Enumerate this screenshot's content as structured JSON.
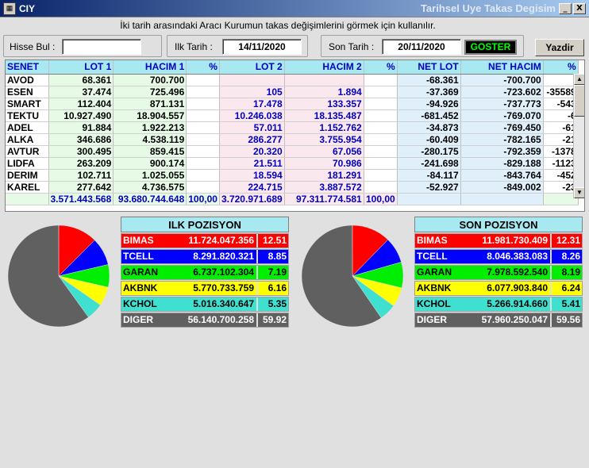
{
  "window": {
    "title_left": "CIY",
    "title_right": "Tarihsel Uye Takas Degisim",
    "min": "_",
    "close": "X",
    "icon": "app-icon"
  },
  "hint": "İki tarih arasındaki  Aracı Kurumun takas değişimlerini görmek için kullanılır.",
  "filters": {
    "hisse_label": "Hisse Bul :",
    "hisse_value": "",
    "ilk_label": "Ilk Tarih :",
    "ilk_value": "14/11/2020",
    "son_label": "Son Tarih :",
    "son_value": "20/11/2020",
    "goster": "GOSTER",
    "yazdir": "Yazdir"
  },
  "grid": {
    "headers": [
      "SENET",
      "LOT 1",
      "HACIM 1",
      "%",
      "LOT 2",
      "HACIM 2",
      "%",
      "NET LOT",
      "NET HACIM",
      "%"
    ],
    "rows": [
      [
        "AVOD",
        "68.361",
        "700.700",
        "",
        "",
        "",
        "",
        "-68.361",
        "-700.700",
        ""
      ],
      [
        "ESEN",
        "37.474",
        "725.496",
        "",
        "105",
        "1.894",
        "",
        "-37.369",
        "-723.602",
        "-35589"
      ],
      [
        "SMART",
        "112.404",
        "871.131",
        "",
        "17.478",
        "133.357",
        "",
        "-94.926",
        "-737.773",
        "-543"
      ],
      [
        "TEKTU",
        "10.927.490",
        "18.904.557",
        "",
        "10.246.038",
        "18.135.487",
        "",
        "-681.452",
        "-769.070",
        "-6"
      ],
      [
        "ADEL",
        "91.884",
        "1.922.213",
        "",
        "57.011",
        "1.152.762",
        "",
        "-34.873",
        "-769.450",
        "-61"
      ],
      [
        "ALKA",
        "346.686",
        "4.538.119",
        "",
        "286.277",
        "3.755.954",
        "",
        "-60.409",
        "-782.165",
        "-21"
      ],
      [
        "AVTUR",
        "300.495",
        "859.415",
        "",
        "20.320",
        "67.056",
        "",
        "-280.175",
        "-792.359",
        "-1378"
      ],
      [
        "LIDFA",
        "263.209",
        "900.174",
        "",
        "21.511",
        "70.986",
        "",
        "-241.698",
        "-829.188",
        "-1123"
      ],
      [
        "DERIM",
        "102.711",
        "1.025.055",
        "",
        "18.594",
        "181.291",
        "",
        "-84.117",
        "-843.764",
        "-452"
      ],
      [
        "KAREL",
        "277.642",
        "4.736.575",
        "",
        "224.715",
        "3.887.572",
        "",
        "-52.927",
        "-849.002",
        "-23"
      ]
    ],
    "totals": [
      "",
      "3.571.443.568",
      "93.680.744.648",
      "100,00",
      "3.720.971.689",
      "97.311.774.581",
      "100,00",
      "",
      "",
      ""
    ]
  },
  "ilk": {
    "title": "ILK POZISYON",
    "rows": [
      {
        "name": "BIMAS",
        "value": "11.724.047.356",
        "pct": "12.51",
        "color": "#ff0000",
        "text": "#ffffff"
      },
      {
        "name": "TCELL",
        "value": "8.291.820.321",
        "pct": "8.85",
        "color": "#0000ff",
        "text": "#ffffff"
      },
      {
        "name": "GARAN",
        "value": "6.737.102.304",
        "pct": "7.19",
        "color": "#00ee00",
        "text": "#000000"
      },
      {
        "name": "AKBNK",
        "value": "5.770.733.759",
        "pct": "6.16",
        "color": "#ffff00",
        "text": "#000000"
      },
      {
        "name": "KCHOL",
        "value": "5.016.340.647",
        "pct": "5.35",
        "color": "#40e0d0",
        "text": "#000000"
      },
      {
        "name": "DIGER",
        "value": "56.140.700.258",
        "pct": "59.92",
        "color": "#606060",
        "text": "#ffffff"
      }
    ]
  },
  "son": {
    "title": "SON POZISYON",
    "rows": [
      {
        "name": "BIMAS",
        "value": "11.981.730.409",
        "pct": "12.31",
        "color": "#ff0000",
        "text": "#ffffff"
      },
      {
        "name": "TCELL",
        "value": "8.046.383.083",
        "pct": "8.26",
        "color": "#0000ff",
        "text": "#ffffff"
      },
      {
        "name": "GARAN",
        "value": "7.978.592.540",
        "pct": "8.19",
        "color": "#00ee00",
        "text": "#000000"
      },
      {
        "name": "AKBNK",
        "value": "6.077.903.840",
        "pct": "6.24",
        "color": "#ffff00",
        "text": "#000000"
      },
      {
        "name": "KCHOL",
        "value": "5.266.914.660",
        "pct": "5.41",
        "color": "#40e0d0",
        "text": "#000000"
      },
      {
        "name": "DIGER",
        "value": "57.960.250.047",
        "pct": "59.56",
        "color": "#606060",
        "text": "#ffffff"
      }
    ]
  }
}
